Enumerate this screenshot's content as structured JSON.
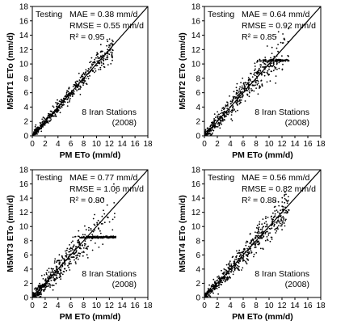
{
  "chart_data": [
    {
      "type": "scatter",
      "panel": "a",
      "xlabel": "PM ETo (mm/d)",
      "ylabel": "M5MT1 ETo (mm/d)",
      "xlim": [
        0,
        18
      ],
      "ylim": [
        0,
        18
      ],
      "xticks": [
        "0",
        "2",
        "4",
        "6",
        "8",
        "10",
        "12",
        "14",
        "16",
        "18"
      ],
      "yticks": [
        "0",
        "2",
        "4",
        "6",
        "8",
        "10",
        "12",
        "14",
        "16",
        "18"
      ],
      "testing_label": "Testing",
      "stats": [
        "MAE = 0.38 mm/d",
        "RMSE = 0.55 mm/d",
        "R² = 0.95"
      ],
      "note": [
        "8 Iran Stations",
        "(2008)"
      ],
      "reference_line": "1:1",
      "scatter_model": {
        "x_max": 12.5,
        "spread": 0.55,
        "n": 520,
        "seed": 11
      }
    },
    {
      "type": "scatter",
      "panel": "b",
      "xlabel": "PM ETo (mm/d)",
      "ylabel": "M5MT2 ETo (mm/d)",
      "xlim": [
        0,
        18
      ],
      "ylim": [
        0,
        18
      ],
      "xticks": [
        "0",
        "2",
        "4",
        "6",
        "8",
        "10",
        "12",
        "14",
        "16",
        "18"
      ],
      "yticks": [
        "0",
        "2",
        "4",
        "6",
        "8",
        "10",
        "12",
        "14",
        "16",
        "18"
      ],
      "testing_label": "Testing",
      "stats": [
        "MAE = 0.64 mm/d",
        "RMSE = 0.92 mm/d",
        "R² = 0.85"
      ],
      "note": [
        "8 Iran Stations",
        "(2008)"
      ],
      "reference_line": "1:1",
      "scatter_model": {
        "x_max": 13,
        "spread": 0.95,
        "n": 560,
        "seed": 23,
        "cap": 10.5
      }
    },
    {
      "type": "scatter",
      "panel": "c",
      "xlabel": "PM ETo (mm/d)",
      "ylabel": "M5MT3 ETo (mm/d)",
      "xlim": [
        0,
        18
      ],
      "ylim": [
        0,
        18
      ],
      "xticks": [
        "0",
        "2",
        "4",
        "6",
        "8",
        "10",
        "12",
        "14",
        "16",
        "18"
      ],
      "yticks": [
        "0",
        "2",
        "4",
        "6",
        "8",
        "10",
        "12",
        "14",
        "16",
        "18"
      ],
      "testing_label": "Testing",
      "stats": [
        "MAE = 0.77 mm/d",
        "RMSE = 1.06 mm/d",
        "R² = 0.80"
      ],
      "note": [
        "8 Iran Stations",
        "(2008)"
      ],
      "reference_line": "1:1",
      "scatter_model": {
        "x_max": 13,
        "spread": 1.1,
        "n": 580,
        "seed": 37,
        "cap": 8.5
      }
    },
    {
      "type": "scatter",
      "panel": "d",
      "xlabel": "PM ETo (mm/d)",
      "ylabel": "M5MT4 ETo (mm/d)",
      "xlim": [
        0,
        18
      ],
      "ylim": [
        0,
        18
      ],
      "xticks": [
        "0",
        "2",
        "4",
        "6",
        "8",
        "10",
        "12",
        "14",
        "16",
        "18"
      ],
      "yticks": [
        "0",
        "2",
        "4",
        "6",
        "8",
        "10",
        "12",
        "14",
        "16",
        "18"
      ],
      "testing_label": "Testing",
      "stats": [
        "MAE = 0.56 mm/d",
        "RMSE = 0.82 mm/d",
        "R² = 0.88"
      ],
      "note": [
        "8 Iran Stations",
        "(2008)"
      ],
      "reference_line": "1:1",
      "scatter_model": {
        "x_max": 13,
        "spread": 0.85,
        "n": 560,
        "seed": 51
      }
    }
  ]
}
